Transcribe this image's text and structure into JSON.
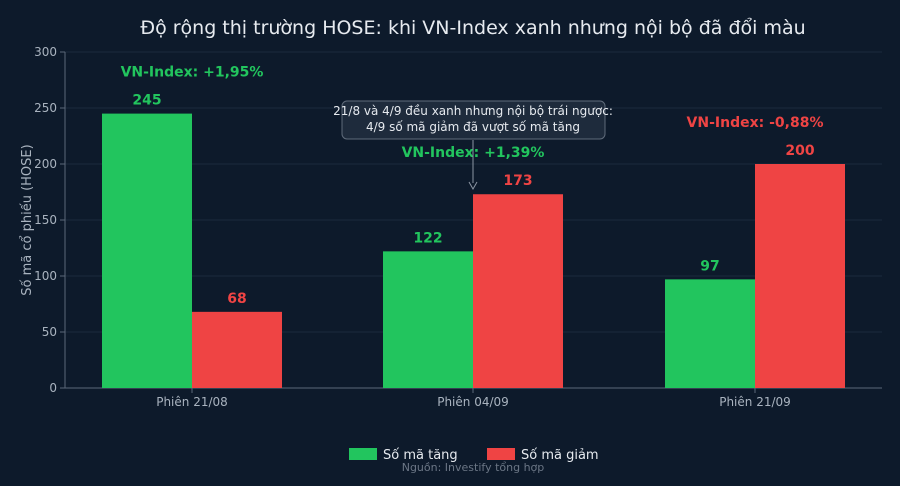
{
  "chart_data": {
    "type": "bar",
    "title": "Độ rộng thị trường HOSE: khi VN-Index xanh nhưng nội bộ đã đổi màu",
    "xlabel": "",
    "ylabel": "Số mã cổ phiếu (HOSE)",
    "ylim": [
      0,
      300
    ],
    "yticks": [
      0,
      50,
      100,
      150,
      200,
      250,
      300
    ],
    "categories": [
      "Phiên 21/08",
      "Phiên 04/09",
      "Phiên 21/09"
    ],
    "series": [
      {
        "name": "Số mã tăng",
        "color": "#22c55e",
        "values": [
          245,
          122,
          97
        ]
      },
      {
        "name": "Số mã giảm",
        "color": "#ef4444",
        "values": [
          68,
          173,
          200
        ]
      }
    ],
    "index_labels": [
      {
        "text": "VN-Index: +1,95%",
        "color": "#22c55e"
      },
      {
        "text": "VN-Index: +1,39%",
        "color": "#22c55e"
      },
      {
        "text": "VN-Index: -0,88%",
        "color": "#ef4444"
      }
    ],
    "annotation": {
      "lines": [
        "21/8 và 4/9 đều xanh nhưng nội bộ trái ngược:",
        "4/9 số mã giảm đã vượt số mã tăng"
      ]
    },
    "legend_position": "bottom-center",
    "grid": true,
    "source": "Nguồn: Investify tổng hợp"
  },
  "colors": {
    "background": "#0d1a2b",
    "axis": "#5b6878",
    "grid": "#1c2a3c",
    "tick_text": "#a9b3bf",
    "title_text": "#e6eaef",
    "source_text": "#6b7685"
  }
}
